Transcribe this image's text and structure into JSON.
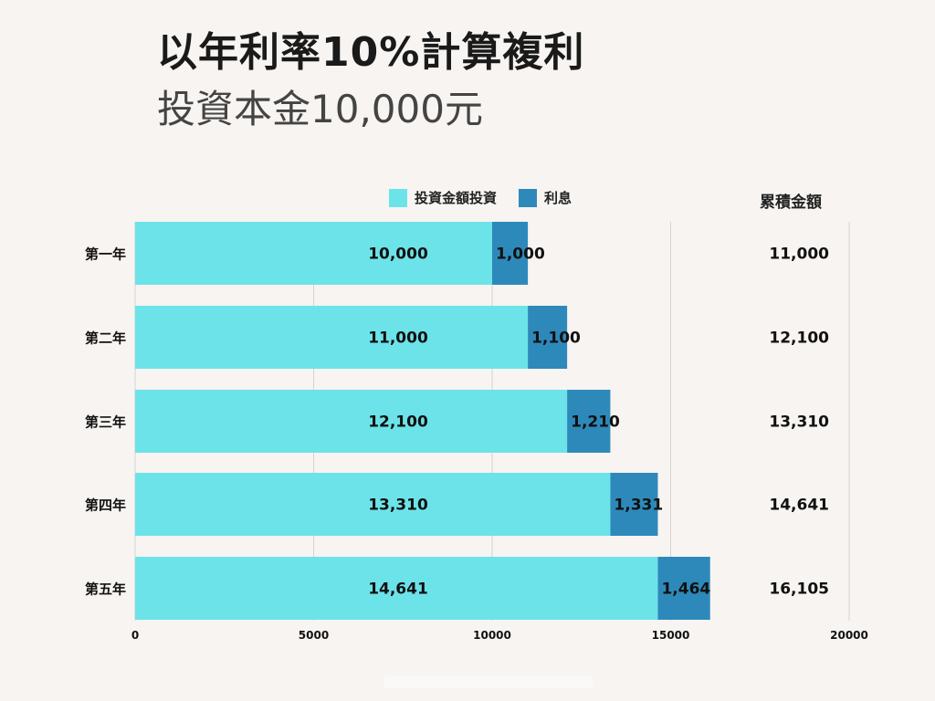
{
  "title": "以年利率10%計算複利",
  "subtitle": "投資本金10,000元",
  "total_header": "累積金額",
  "colors": {
    "principal": "#6ce3e9",
    "interest": "#2e89bb",
    "grid": "#d6d3d0",
    "background": "#f7f4f1"
  },
  "legend": [
    {
      "label": "投資金額投資",
      "color": "#6ce3e9"
    },
    {
      "label": "利息",
      "color": "#2e89bb"
    }
  ],
  "chart_data": {
    "type": "bar",
    "orientation": "horizontal",
    "stacked": true,
    "categories": [
      "第一年",
      "第二年",
      "第三年",
      "第四年",
      "第五年"
    ],
    "series": [
      {
        "name": "投資金額投資",
        "values": [
          10000,
          11000,
          12100,
          13310,
          14641
        ],
        "labels": [
          "10,000",
          "11,000",
          "12,100",
          "13,310",
          "14,641"
        ]
      },
      {
        "name": "利息",
        "values": [
          1000,
          1100,
          1210,
          1331,
          1464
        ],
        "labels": [
          "1,000",
          "1,100",
          "1,210",
          "1,331",
          "1,464"
        ]
      }
    ],
    "totals": [
      "11,000",
      "12,100",
      "13,310",
      "14,641",
      "16,105"
    ],
    "xlim": [
      0,
      20000
    ],
    "xticks": [
      0,
      5000,
      10000,
      15000,
      20000
    ],
    "xtick_labels": [
      "0",
      "5000",
      "10000",
      "15000",
      "20000"
    ],
    "grid": true,
    "legend_position": "top"
  }
}
